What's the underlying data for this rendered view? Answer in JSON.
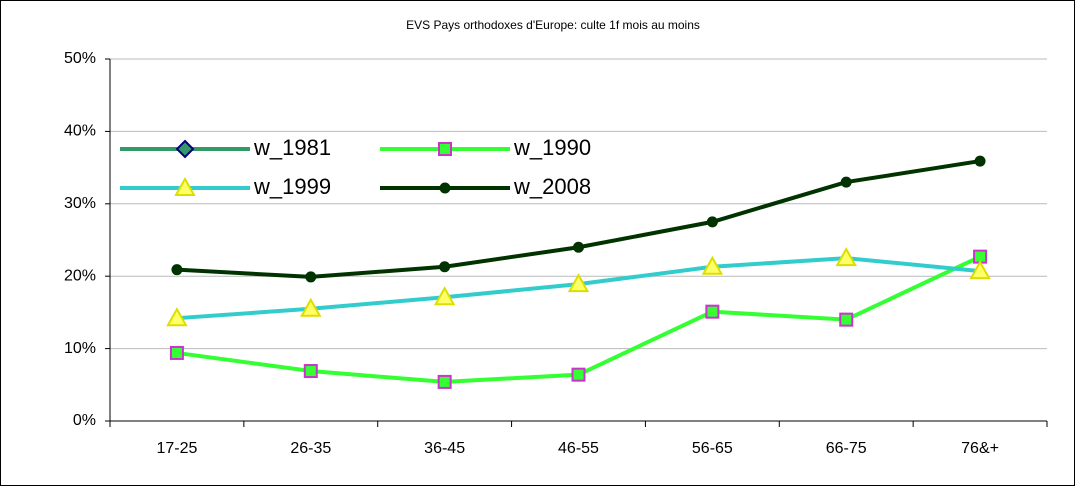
{
  "chart_data": {
    "type": "line",
    "title": "EVS Pays orthodoxes d'Europe: culte 1f mois au moins",
    "categories": [
      "17-25",
      "26-35",
      "36-45",
      "46-55",
      "56-65",
      "66-75",
      "76&+"
    ],
    "series": [
      {
        "name": "w_1981",
        "color": "#339966",
        "marker": "diamond",
        "values": [
          null,
          null,
          null,
          null,
          null,
          null,
          null
        ]
      },
      {
        "name": "w_1990",
        "color": "#33ff33",
        "marker": "square",
        "values": [
          9.4,
          6.9,
          5.4,
          6.4,
          15.1,
          14.0,
          22.7
        ]
      },
      {
        "name": "w_1999",
        "color": "#33cccc",
        "marker": "triangle",
        "values": [
          14.2,
          15.5,
          17.1,
          18.9,
          21.3,
          22.5,
          20.7
        ]
      },
      {
        "name": "w_2008",
        "color": "#003300",
        "marker": "circle",
        "values": [
          20.9,
          19.9,
          21.3,
          24.0,
          27.5,
          33.0,
          35.9
        ]
      }
    ],
    "ylim": [
      0,
      50
    ],
    "yticks": [
      {
        "value": 0,
        "label": "0%"
      },
      {
        "value": 10,
        "label": "10%"
      },
      {
        "value": 20,
        "label": "20%"
      },
      {
        "value": 30,
        "label": "30%"
      },
      {
        "value": 40,
        "label": "40%"
      },
      {
        "value": 50,
        "label": "50%"
      }
    ],
    "grid": true
  }
}
